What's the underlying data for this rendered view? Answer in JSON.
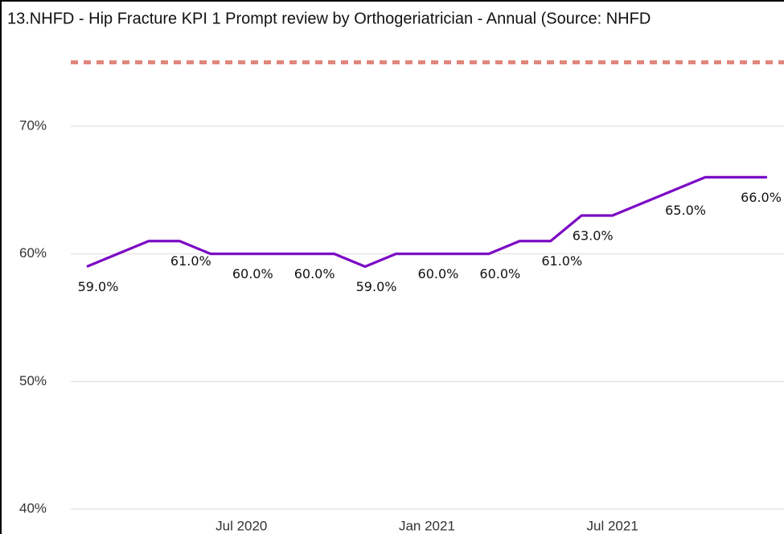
{
  "chart_data": {
    "type": "line",
    "title": "13.NHFD - Hip Fracture KPI 1 Prompt review by Orthogeriatrician - Annual (Source: NHFD",
    "categories": [
      null,
      null,
      null,
      null,
      null,
      "Jul 2020",
      null,
      null,
      null,
      null,
      null,
      "Jan 2021",
      null,
      null,
      null,
      null,
      null,
      "Jul 2021",
      null,
      null,
      null,
      null,
      null
    ],
    "series": [
      {
        "name": null,
        "color": "#7b0bc4",
        "values": [
          59,
          60,
          61,
          61,
          60,
          60,
          60,
          60,
          60,
          59,
          60,
          60,
          60,
          60,
          61,
          61,
          63,
          63,
          64,
          65,
          66,
          66,
          66
        ],
        "value_labels": [
          "59.0%",
          null,
          null,
          "61.0%",
          null,
          "60.0%",
          null,
          "60.0%",
          null,
          "59.0%",
          null,
          "60.0%",
          null,
          "60.0%",
          null,
          "61.0%",
          "63.0%",
          null,
          null,
          "65.0%",
          null,
          null,
          "66.0%"
        ]
      }
    ],
    "target": {
      "value": 75,
      "color": "#e0877d"
    },
    "ylim": [
      38.05,
      77
    ],
    "yticks": [
      {
        "value": 40,
        "label": "40%"
      },
      {
        "value": 50,
        "label": "50%"
      },
      {
        "value": 60,
        "label": "60%"
      },
      {
        "value": 70,
        "label": "70%"
      }
    ],
    "grid": true
  }
}
